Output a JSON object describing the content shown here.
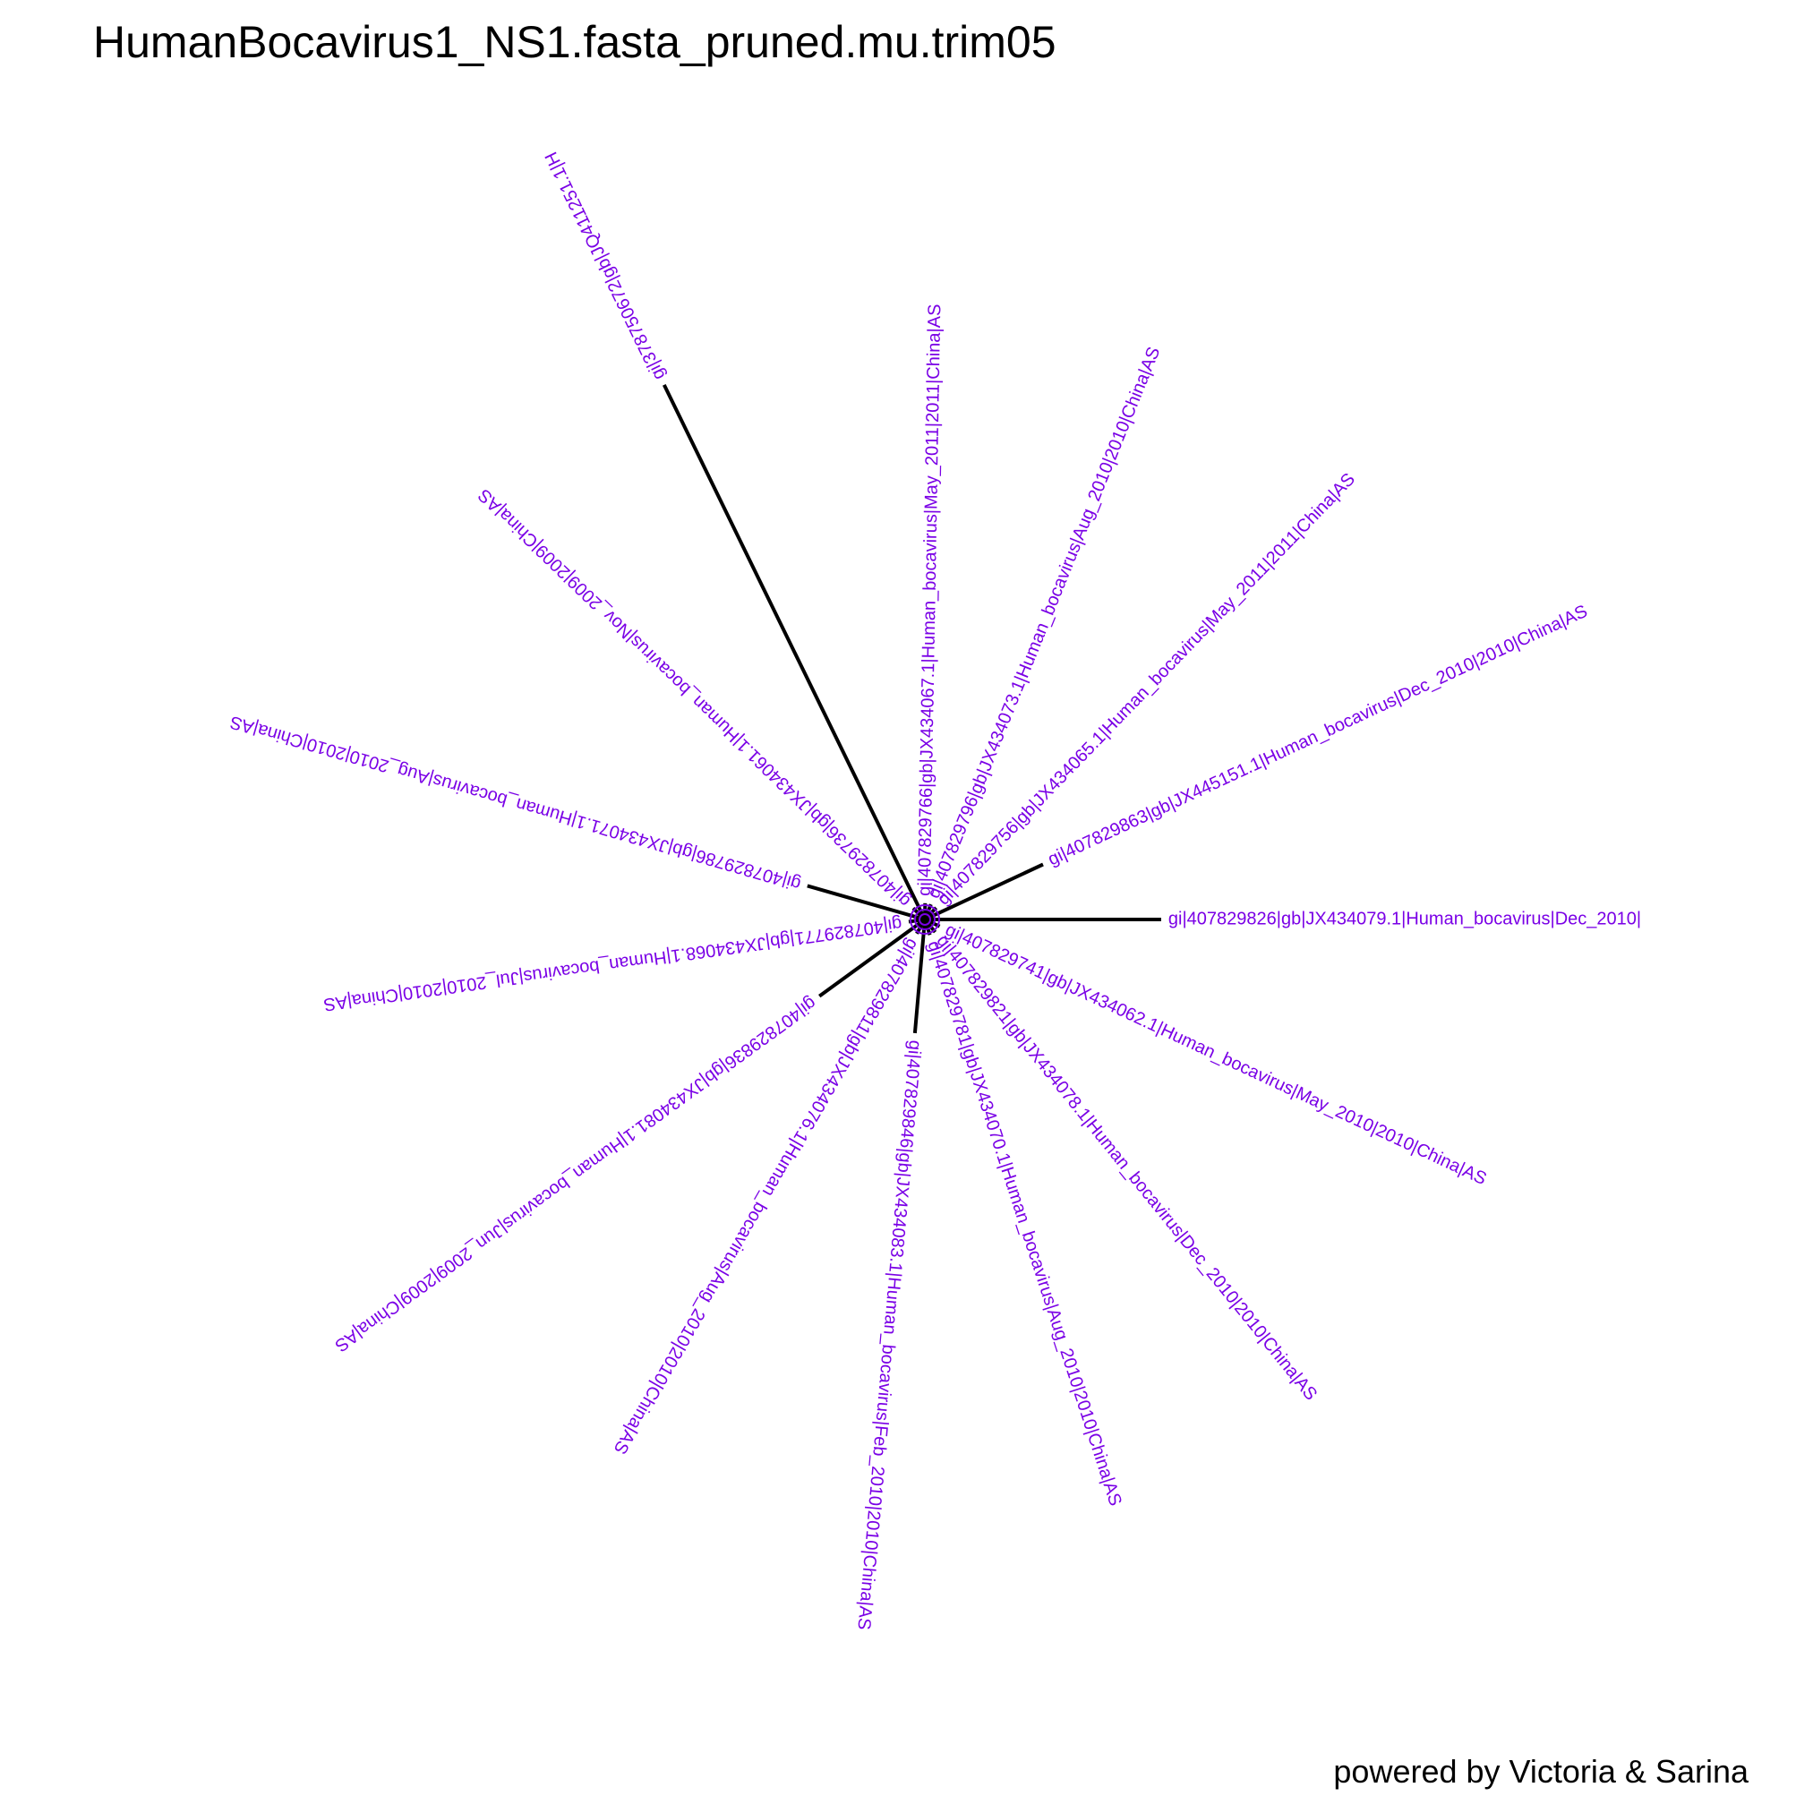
{
  "title": "HumanBocavirus1_NS1.fasta_pruned.mu.trim05",
  "credit": "powered by Victoria & Sarina",
  "colors": {
    "label": "#7a00e6",
    "branch": "#000000"
  },
  "layout_type": "unrooted-radial",
  "tips": [
    {
      "id": "t01",
      "label": "gi|407829826|gb|JX434079.1|Human_bocavirus|Dec_2010|",
      "branch_length": 0.29,
      "angle_deg": 0
    },
    {
      "id": "t02",
      "label": "gi|407829863|gb|JX445151.1|Human_bocavirus|Dec_2010|2010|China|AS",
      "branch_length": 0.16,
      "angle_deg": -25
    },
    {
      "id": "t03",
      "label": "gi|407829756|gb|JX434065.1|Human_bocavirus|May_2011|2011|China|AS",
      "branch_length": 0.02,
      "angle_deg": -46
    },
    {
      "id": "t04",
      "label": "gi|407829796|gb|JX434073.1|Human_bocavirus|Aug_2010|2010|China|AS",
      "branch_length": 0.02,
      "angle_deg": -68
    },
    {
      "id": "t05",
      "label": "gi|407829766|gb|JX434067.1|Human_bocavirus|May_2011|2011|China|AS",
      "branch_length": 0.02,
      "angle_deg": -89
    },
    {
      "id": "t06",
      "label": "gi|378750672|gb|JQ411251.1|H",
      "branch_length": 0.73,
      "angle_deg": -116
    },
    {
      "id": "t07",
      "label": "gi|407829736|gb|JX434061.1|Human_bocavirus|Nov_2009|2009|China|AS",
      "branch_length": 0.02,
      "angle_deg": -136
    },
    {
      "id": "t08",
      "label": "gi|407829786|gb|JX434071.1|Human_bocavirus|Aug_2010|2010|China|AS",
      "branch_length": 0.15,
      "angle_deg": -164
    },
    {
      "id": "t09",
      "label": "gi|407829771|gb|JX434068.1|Human_bocavirus|Jul_2010|2010|China|AS",
      "branch_length": 0.02,
      "angle_deg": 172
    },
    {
      "id": "t10",
      "label": "gi|407829836|gb|JX434081.1|Human_bocavirus|Jun_2009|2009|China|AS",
      "branch_length": 0.16,
      "angle_deg": 144
    },
    {
      "id": "t11",
      "label": "gi|407829811|gb|JX434076.1|Human_bocavirus|Aug_2010|2010|China|AS",
      "branch_length": 0.02,
      "angle_deg": 120
    },
    {
      "id": "t12",
      "label": "gi|407829846|gb|JX434083.1|Human_bocavirus|Feb_2010|2010|China|AS",
      "branch_length": 0.14,
      "angle_deg": 95
    },
    {
      "id": "t13",
      "label": "gi|407829781|gb|JX434070.1|Human_bocavirus|Aug_2010|2010|China|AS",
      "branch_length": 0.02,
      "angle_deg": 72
    },
    {
      "id": "t14",
      "label": "gi|407829821|gb|JX434078.1|Human_bocavirus|Dec_2010|2010|China|AS",
      "branch_length": 0.02,
      "angle_deg": 51
    },
    {
      "id": "t15",
      "label": "gi|407829741|gb|JX434062.1|Human_bocavirus|May_2010|2010|China|AS",
      "branch_length": 0.02,
      "angle_deg": 25
    }
  ]
}
